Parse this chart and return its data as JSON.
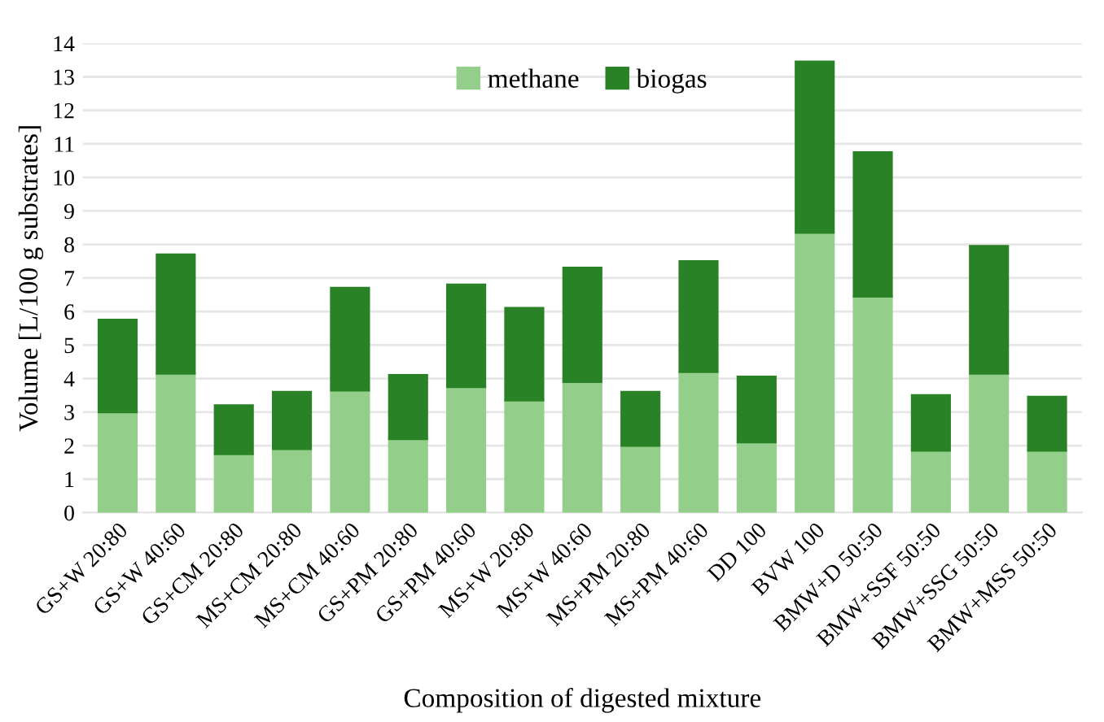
{
  "chart_data": {
    "type": "bar",
    "stacked": true,
    "xlabel": "Composition of digested mixture",
    "ylabel": "Volume [L/100 g substrates]",
    "categories": [
      "GS+W 20:80",
      "GS+W 40:60",
      "GS+CM 20:80",
      "MS+CM 20:80",
      "MS+CM 40:60",
      "GS+PM 20:80",
      "GS+PM 40:60",
      "MS+W 20:80",
      "MS+W 40:60",
      "MS+PM 20:80",
      "MS+PM 40:60",
      "DD 100",
      "BVW 100",
      "BMW+D 50:50",
      "BMW+SSF 50:50",
      "BMW+SSG 50:50",
      "BMW+MSS 50:50"
    ],
    "series": [
      {
        "name": "methane",
        "color": "#93cf8a",
        "values": [
          3.0,
          4.15,
          1.75,
          1.9,
          3.65,
          2.2,
          3.75,
          3.35,
          3.9,
          2.0,
          4.2,
          2.1,
          8.35,
          6.45,
          1.85,
          4.15,
          1.85
        ]
      },
      {
        "name": "biogas",
        "color": "#2a8226",
        "values": [
          2.75,
          3.55,
          1.45,
          1.7,
          3.05,
          1.9,
          3.05,
          2.75,
          3.4,
          1.6,
          3.3,
          1.95,
          5.1,
          4.3,
          1.65,
          3.8,
          1.6
        ]
      }
    ],
    "ylim": [
      0,
      14
    ],
    "yticks": [
      0,
      1,
      2,
      3,
      4,
      5,
      6,
      7,
      8,
      9,
      10,
      11,
      12,
      13,
      14
    ],
    "grid": "y",
    "legend": "top"
  }
}
